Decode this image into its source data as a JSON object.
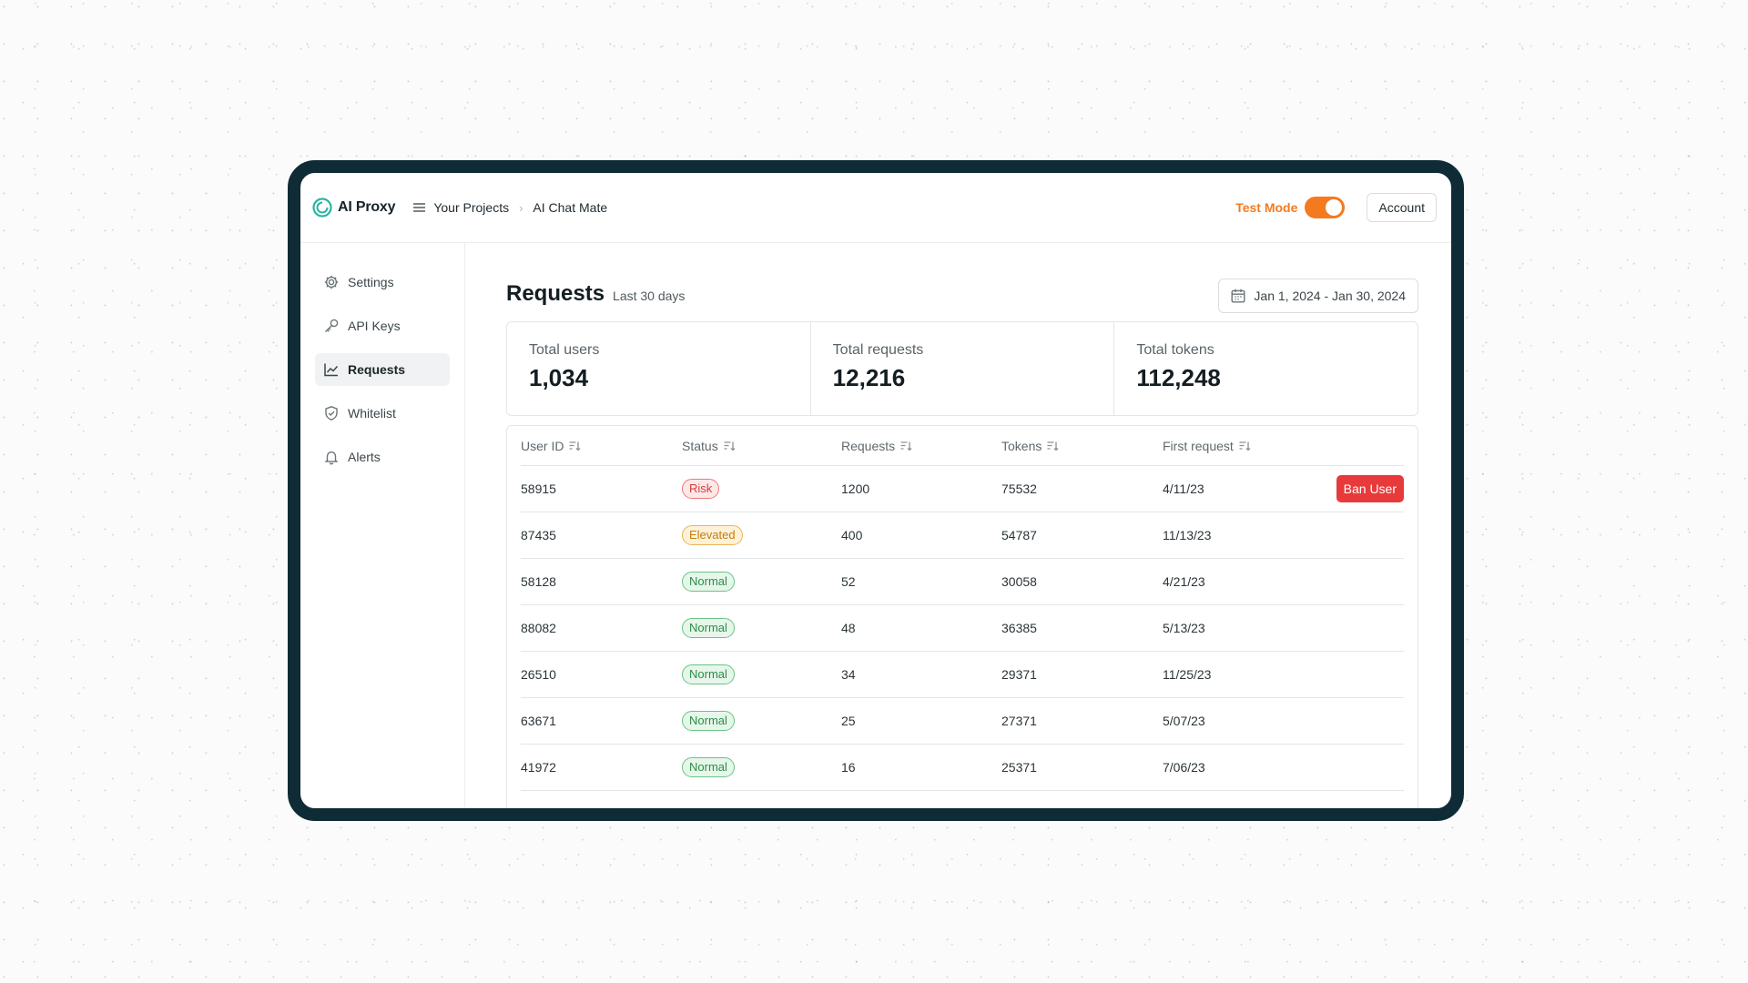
{
  "app": {
    "name": "AI Proxy",
    "brand_color": "#2bb5a0"
  },
  "breadcrumb": {
    "items": [
      "Your Projects",
      "AI Chat Mate"
    ]
  },
  "topbar": {
    "test_mode_label": "Test Mode",
    "test_mode_on": true,
    "account_label": "Account"
  },
  "sidebar": {
    "items": [
      {
        "label": "Settings",
        "icon": "gear-icon"
      },
      {
        "label": "API Keys",
        "icon": "key-icon"
      },
      {
        "label": "Requests",
        "icon": "chart-line-icon",
        "active": true
      },
      {
        "label": "Whitelist",
        "icon": "shield-check-icon"
      },
      {
        "label": "Alerts",
        "icon": "bell-icon"
      }
    ]
  },
  "page": {
    "title": "Requests",
    "subtitle": "Last 30 days",
    "date_range": "Jan 1, 2024 -  Jan 30, 2024"
  },
  "stats": [
    {
      "label": "Total users",
      "value": "1,034"
    },
    {
      "label": "Total requests",
      "value": "12,216"
    },
    {
      "label": "Total tokens",
      "value": "112,248"
    }
  ],
  "table": {
    "columns": [
      "User ID",
      "Status",
      "Requests",
      "Tokens",
      "First request"
    ],
    "action_label": "Ban User",
    "rows": [
      {
        "user_id": "58915",
        "status": "Risk",
        "requests": "1200",
        "tokens": "75532",
        "first_request": "4/11/23"
      },
      {
        "user_id": "87435",
        "status": "Elevated",
        "requests": "400",
        "tokens": "54787",
        "first_request": "11/13/23"
      },
      {
        "user_id": "58128",
        "status": "Normal",
        "requests": "52",
        "tokens": "30058",
        "first_request": "4/21/23"
      },
      {
        "user_id": "88082",
        "status": "Normal",
        "requests": "48",
        "tokens": "36385",
        "first_request": "5/13/23"
      },
      {
        "user_id": "26510",
        "status": "Normal",
        "requests": "34",
        "tokens": "29371",
        "first_request": "11/25/23"
      },
      {
        "user_id": "63671",
        "status": "Normal",
        "requests": "25",
        "tokens": "27371",
        "first_request": "5/07/23"
      },
      {
        "user_id": "41972",
        "status": "Normal",
        "requests": "16",
        "tokens": "25371",
        "first_request": "7/06/23"
      }
    ]
  },
  "colors": {
    "frame": "#0f2b35",
    "accent_orange": "#f47a20",
    "danger": "#e83a3a",
    "risk": "#d63b3b",
    "elevated": "#c47f0e",
    "normal": "#2b8d48"
  }
}
